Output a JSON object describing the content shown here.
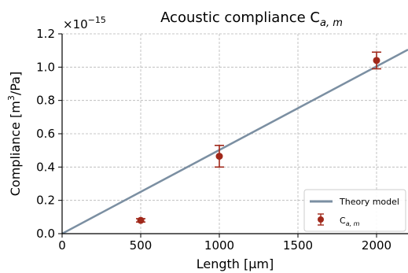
{
  "chart_data": {
    "type": "scatter",
    "title": "Acoustic compliance C",
    "title_subscript": "a, m",
    "xlabel": "Length [μm]",
    "ylabel_main": "Compliance [m",
    "ylabel_sup": "3",
    "ylabel_tail": "/Pa]",
    "y_multiplier": "×10",
    "y_multiplier_exp": "−15",
    "xlim": [
      0,
      2200
    ],
    "ylim": [
      0,
      1.2
    ],
    "grid": true,
    "legend_position": "bottom-right",
    "x_ticks": [
      0,
      500,
      1000,
      1500,
      2000
    ],
    "x_tick_labels": [
      "0",
      "500",
      "1000",
      "1500",
      "2000"
    ],
    "y_ticks": [
      0.0,
      0.2,
      0.4,
      0.6,
      0.8,
      1.0,
      1.2
    ],
    "y_tick_labels": [
      "0.0",
      "0.2",
      "0.4",
      "0.6",
      "0.8",
      "1.0",
      "1.2"
    ],
    "series": [
      {
        "name": "Theory model",
        "kind": "line",
        "color": "#7b8fa2",
        "x": [
          0,
          2200
        ],
        "y": [
          0.0,
          1.105
        ]
      },
      {
        "name": "C",
        "name_subscript": "a, m",
        "kind": "errorbar",
        "color": "#a0281a",
        "x": [
          500,
          1000,
          2000
        ],
        "y": [
          0.08,
          0.465,
          1.04
        ],
        "yerr": [
          0.01,
          0.065,
          0.05
        ]
      }
    ]
  }
}
